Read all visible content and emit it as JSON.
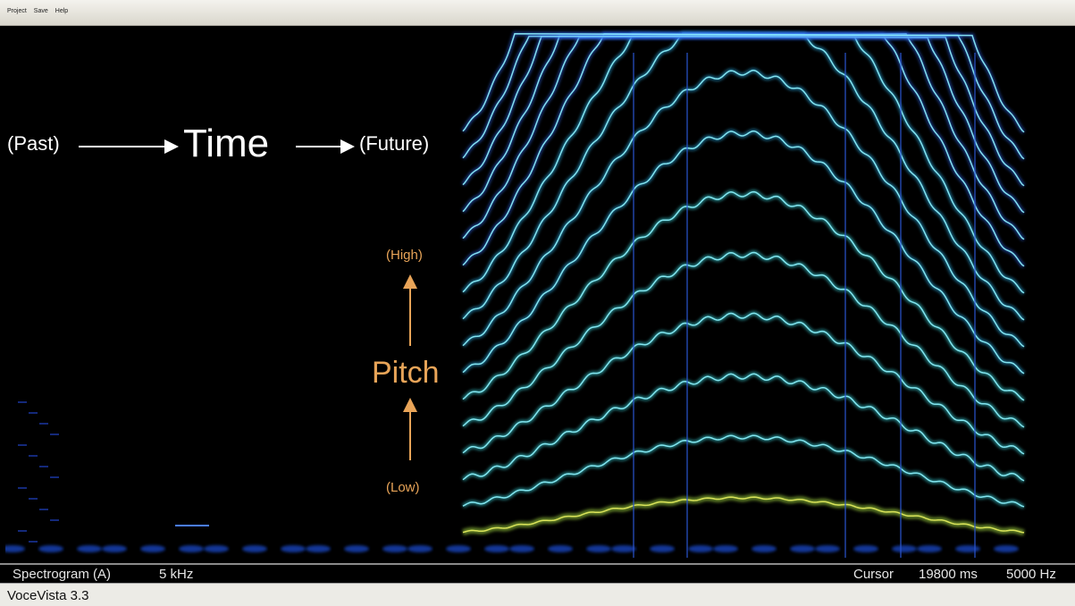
{
  "menu": [
    "Project",
    "Save",
    "Help"
  ],
  "annotations": {
    "past": "(Past)",
    "time": "Time",
    "future": "(Future)",
    "high": "(High)",
    "pitch": "Pitch",
    "low": "(Low)"
  },
  "status_bar": {
    "view": "Spectrogram (A)",
    "range": "5 kHz",
    "cursor_label": "Cursor",
    "cursor_time": "19800 ms",
    "cursor_freq": "5000 Hz"
  },
  "footer": {
    "title": "VoceVista 3.3"
  }
}
